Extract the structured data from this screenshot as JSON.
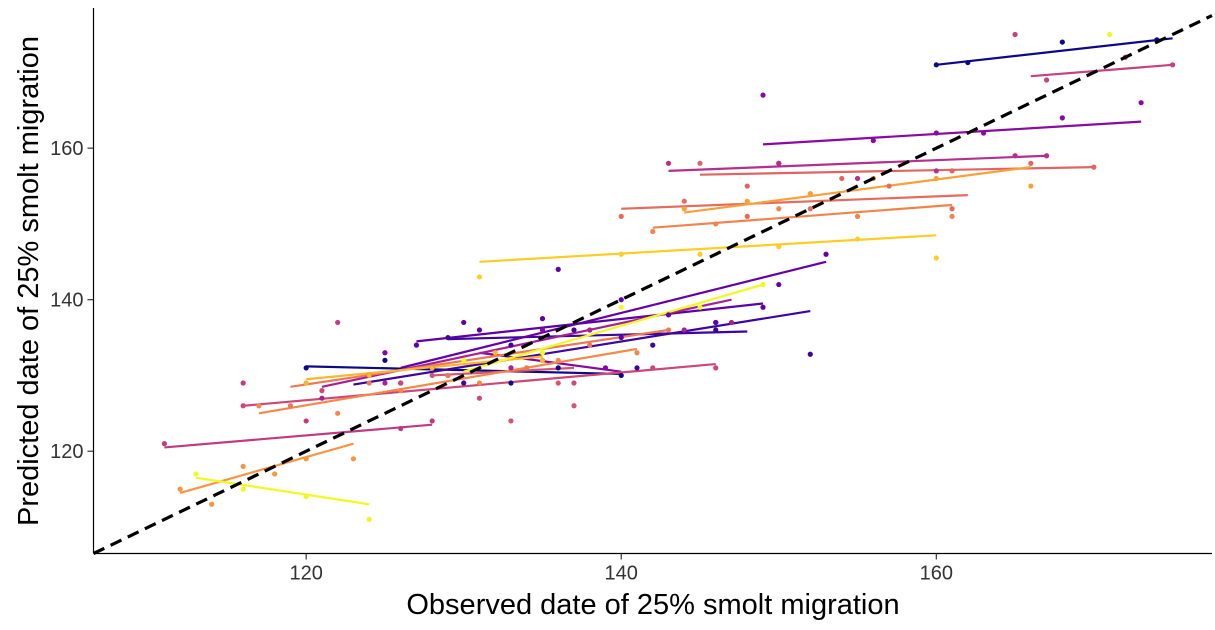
{
  "chart_data": {
    "type": "scatter",
    "xlabel": "Observed date of 25% smolt migration",
    "ylabel": "Predicted date of 25% smolt migration",
    "xlim": [
      106.5,
      177.5
    ],
    "ylim": [
      106.5,
      178.5
    ],
    "x_ticks": [
      120,
      140,
      160
    ],
    "y_ticks": [
      120,
      140,
      160
    ],
    "grid": false,
    "legend": "none",
    "reference_line": {
      "type": "1:1",
      "style": "dashed",
      "color": "#000000",
      "from": [
        106.5,
        106.5
      ],
      "to": [
        177.5,
        177.5
      ]
    },
    "series": [
      {
        "color": "#0d0887",
        "line": [
          [
            120,
            131.2
          ],
          [
            140,
            130.2
          ]
        ],
        "points": [
          [
            120,
            131
          ],
          [
            124,
            130
          ],
          [
            128,
            131
          ],
          [
            133,
            129
          ],
          [
            136,
            131
          ],
          [
            140,
            130
          ],
          [
            125,
            132
          ]
        ]
      },
      {
        "color": "#0d0887",
        "line": [
          [
            160,
            171
          ],
          [
            175,
            174.5
          ]
        ],
        "points": [
          [
            160,
            171
          ],
          [
            162,
            171.3
          ],
          [
            168,
            174
          ],
          [
            174,
            174.3
          ]
        ]
      },
      {
        "color": "#3e049c",
        "line": [
          [
            123,
            128.8
          ],
          [
            152,
            138.5
          ]
        ],
        "points": [
          [
            124,
            130
          ],
          [
            130,
            129
          ],
          [
            135,
            132
          ],
          [
            141,
            131
          ],
          [
            146,
            136
          ],
          [
            152,
            132.8
          ]
        ]
      },
      {
        "color": "#3e049c",
        "line": [
          [
            129,
            134.8
          ],
          [
            148,
            135.8
          ]
        ],
        "points": [
          [
            129,
            135
          ],
          [
            133,
            134
          ],
          [
            137,
            136
          ],
          [
            142,
            134
          ],
          [
            146,
            137
          ]
        ]
      },
      {
        "color": "#6300a7",
        "line": [
          [
            126,
            131
          ],
          [
            153,
            145
          ]
        ],
        "points": [
          [
            126,
            129
          ],
          [
            131,
            136
          ],
          [
            136,
            144
          ],
          [
            140,
            140
          ],
          [
            143,
            138
          ],
          [
            150,
            142
          ],
          [
            153,
            146
          ]
        ]
      },
      {
        "color": "#5c01a6",
        "line": [
          [
            127,
            134.5
          ],
          [
            149,
            139.5
          ]
        ],
        "points": [
          [
            127,
            134
          ],
          [
            130,
            137
          ],
          [
            135,
            137.5
          ],
          [
            140,
            135
          ],
          [
            146,
            137
          ],
          [
            149,
            139
          ]
        ]
      },
      {
        "color": "#8707a6",
        "line": [
          [
            140,
            130.5
          ],
          [
            131,
            133
          ]
        ],
        "points": [
          [
            125,
            133
          ],
          [
            135,
            136
          ],
          [
            139,
            131
          ]
        ]
      },
      {
        "color": "#8a09a5",
        "line": [
          [
            149,
            160.5
          ],
          [
            173,
            163.5
          ]
        ],
        "points": [
          [
            149,
            167
          ],
          [
            150,
            158
          ],
          [
            156,
            161
          ],
          [
            160,
            162
          ],
          [
            163,
            162
          ],
          [
            168,
            164
          ],
          [
            173,
            166
          ]
        ]
      },
      {
        "color": "#a62098",
        "line": [
          [
            121,
            128.5
          ],
          [
            147,
            140
          ]
        ],
        "points": [
          [
            121,
            127
          ],
          [
            125,
            129
          ],
          [
            129,
            130
          ],
          [
            133,
            131
          ],
          [
            138,
            136
          ],
          [
            144,
            136
          ],
          [
            147,
            137
          ]
        ]
      },
      {
        "color": "#b52f8c",
        "line": [
          [
            143,
            157
          ],
          [
            167,
            159
          ]
        ],
        "points": [
          [
            143,
            158
          ],
          [
            150,
            158
          ],
          [
            155,
            156
          ],
          [
            160,
            157
          ],
          [
            165,
            159
          ],
          [
            167,
            159
          ]
        ]
      },
      {
        "color": "#c03a83",
        "line": [
          [
            111,
            120.5
          ],
          [
            128,
            123.5
          ]
        ],
        "points": [
          [
            111,
            121
          ],
          [
            116,
            129
          ],
          [
            120,
            124
          ],
          [
            122,
            137
          ],
          [
            126,
            123
          ],
          [
            128,
            124
          ]
        ]
      },
      {
        "color": "#c6417d",
        "line": [
          [
            166,
            169.5
          ],
          [
            175,
            171
          ]
        ],
        "points": [
          [
            165,
            175
          ],
          [
            167,
            169
          ],
          [
            172,
            172
          ],
          [
            175,
            171
          ]
        ]
      },
      {
        "color": "#cc4778",
        "line": [
          [
            116,
            126
          ],
          [
            146,
            131.5
          ]
        ],
        "points": [
          [
            116,
            126
          ],
          [
            121,
            128
          ],
          [
            126,
            129
          ],
          [
            131,
            127
          ],
          [
            137,
            129
          ],
          [
            142,
            131
          ],
          [
            146,
            131
          ]
        ]
      },
      {
        "color": "#d5546e",
        "line": [
          [
            128,
            130
          ],
          [
            137,
            131
          ]
        ],
        "points": [
          [
            128,
            130
          ],
          [
            133,
            124
          ],
          [
            136,
            129
          ],
          [
            137,
            126
          ]
        ]
      },
      {
        "color": "#e16462",
        "line": [
          [
            145,
            156.5
          ],
          [
            170,
            157.5
          ]
        ],
        "points": [
          [
            145,
            158
          ],
          [
            148,
            155
          ],
          [
            154,
            156
          ],
          [
            161,
            157
          ],
          [
            166,
            158
          ],
          [
            170,
            157.5
          ]
        ]
      },
      {
        "color": "#e56b5d",
        "line": [
          [
            140,
            152
          ],
          [
            162,
            153.8
          ]
        ],
        "points": [
          [
            140,
            151
          ],
          [
            144,
            153
          ],
          [
            148,
            151
          ],
          [
            152,
            152
          ],
          [
            157,
            155
          ],
          [
            161,
            152
          ]
        ]
      },
      {
        "color": "#ed7953",
        "line": [
          [
            119,
            128.5
          ],
          [
            143,
            136
          ]
        ],
        "points": [
          [
            119,
            126
          ],
          [
            124,
            129
          ],
          [
            129,
            130
          ],
          [
            134,
            131
          ],
          [
            138,
            134
          ],
          [
            143,
            136
          ]
        ]
      },
      {
        "color": "#f2844b",
        "line": [
          [
            142,
            149.5
          ],
          [
            161,
            152.5
          ]
        ],
        "points": [
          [
            142,
            149
          ],
          [
            146,
            150
          ],
          [
            150,
            152
          ],
          [
            155,
            151
          ],
          [
            161,
            151
          ]
        ]
      },
      {
        "color": "#f48849",
        "line": [
          [
            117,
            125
          ],
          [
            141,
            133.5
          ]
        ],
        "points": [
          [
            117,
            126
          ],
          [
            122,
            125
          ],
          [
            126,
            128
          ],
          [
            131,
            129
          ],
          [
            136,
            132
          ],
          [
            141,
            133
          ]
        ]
      },
      {
        "color": "#f89540",
        "line": [
          [
            112,
            114.5
          ],
          [
            123,
            121
          ]
        ],
        "points": [
          [
            112,
            115
          ],
          [
            114,
            113
          ],
          [
            116,
            118
          ],
          [
            118,
            117
          ],
          [
            120,
            119
          ],
          [
            123,
            119
          ]
        ]
      },
      {
        "color": "#fb9f3a",
        "line": [
          [
            144,
            151.5
          ],
          [
            166,
            157.5
          ]
        ],
        "points": [
          [
            144,
            152
          ],
          [
            148,
            153
          ],
          [
            152,
            154
          ],
          [
            156,
            156
          ],
          [
            160,
            156
          ],
          [
            166,
            155
          ]
        ]
      },
      {
        "color": "#fdb42f",
        "line": [
          [
            120,
            129.5
          ],
          [
            135,
            132.5
          ]
        ],
        "points": [
          [
            120,
            129
          ],
          [
            124,
            130
          ],
          [
            128,
            131
          ],
          [
            132,
            133
          ],
          [
            135,
            132
          ]
        ]
      },
      {
        "color": "#fccd25",
        "line": [
          [
            131,
            145
          ],
          [
            160,
            148.5
          ]
        ],
        "points": [
          [
            131,
            143
          ],
          [
            140,
            146
          ],
          [
            145,
            146
          ],
          [
            150,
            147
          ],
          [
            155,
            148
          ],
          [
            160,
            145.5
          ]
        ]
      },
      {
        "color": "#f0f921",
        "line": [
          [
            113,
            116.5
          ],
          [
            124,
            113
          ]
        ],
        "points": [
          [
            113,
            117
          ],
          [
            116,
            115
          ],
          [
            120,
            114
          ],
          [
            124,
            111
          ]
        ]
      },
      {
        "color": "#f0f921",
        "line": [
          [
            130,
            130.5
          ],
          [
            149,
            142
          ]
        ],
        "points": [
          [
            130,
            132
          ],
          [
            135,
            133
          ],
          [
            140,
            139
          ],
          [
            145,
            139
          ],
          [
            149,
            142
          ],
          [
            171,
            175
          ]
        ]
      }
    ]
  }
}
